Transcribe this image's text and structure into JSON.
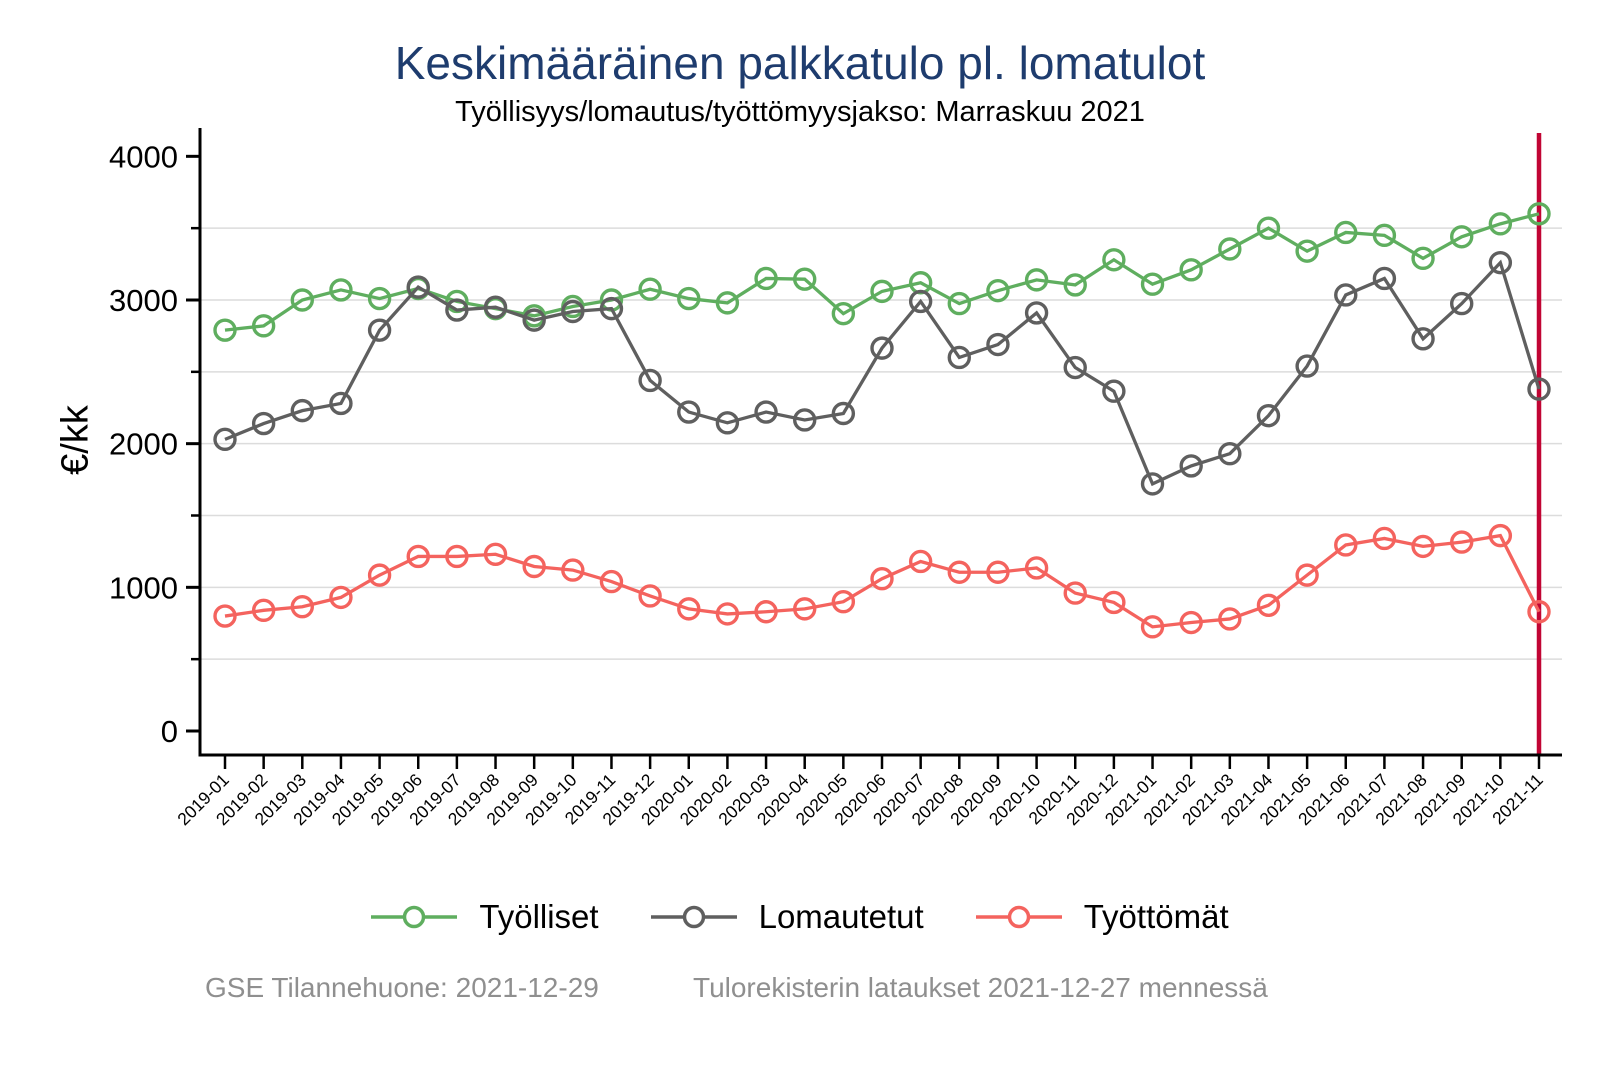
{
  "title": "Keskimääräinen palkkatulo pl. lomatulot",
  "subtitle": "Työllisyys/lomautus/työttömyysjakso: Marraskuu 2021",
  "footer": {
    "left_note": "GSE Tilannehuone: 2021-12-29",
    "right_note": "Tulorekisterin lataukset 2021-12-27 mennessä"
  },
  "colors": {
    "title": "#1e3c6e",
    "axis": "#000000",
    "grid": "#dcdcdc",
    "footer": "#8f8f8f",
    "background": "#ffffff"
  },
  "chart_data": {
    "type": "line",
    "title": "Keskimääräinen palkkatulo pl. lomatulot",
    "subtitle": "Työllisyys/lomautus/työttömyysjakso: Marraskuu 2021",
    "xlabel": "",
    "ylabel": "€/kk",
    "ylim": [
      0,
      4000
    ],
    "grid": true,
    "legend_position": "bottom",
    "ytick_labels": [
      0,
      1000,
      2000,
      3000,
      4000
    ],
    "ytick_minor": [
      500,
      1500,
      2500,
      3500
    ],
    "gridline_values": [
      500,
      1000,
      1500,
      2000,
      2500,
      3000,
      3500
    ],
    "x": [
      "2019-01",
      "2019-02",
      "2019-03",
      "2019-04",
      "2019-05",
      "2019-06",
      "2019-07",
      "2019-08",
      "2019-09",
      "2019-10",
      "2019-11",
      "2019-12",
      "2020-01",
      "2020-02",
      "2020-03",
      "2020-04",
      "2020-05",
      "2020-06",
      "2020-07",
      "2020-08",
      "2020-09",
      "2020-10",
      "2020-11",
      "2020-12",
      "2021-01",
      "2021-02",
      "2021-03",
      "2021-04",
      "2021-05",
      "2021-06",
      "2021-07",
      "2021-08",
      "2021-09",
      "2021-10",
      "2021-11"
    ],
    "series": [
      {
        "name": "Työlliset",
        "color": "#5fae5f",
        "values": [
          2790,
          2820,
          3000,
          3070,
          3010,
          3080,
          2990,
          2940,
          2890,
          2955,
          3000,
          3075,
          3010,
          2980,
          3150,
          3145,
          2905,
          3060,
          3120,
          2975,
          3065,
          3140,
          3105,
          3280,
          3110,
          3210,
          3355,
          3500,
          3340,
          3470,
          3450,
          3290,
          3440,
          3530,
          3600
        ]
      },
      {
        "name": "Lomautetut",
        "color": "#5f5f5f",
        "values": [
          2030,
          2140,
          2230,
          2280,
          2790,
          3090,
          2930,
          2950,
          2860,
          2920,
          2940,
          2440,
          2220,
          2145,
          2220,
          2165,
          2210,
          2665,
          2990,
          2600,
          2690,
          2910,
          2530,
          2365,
          1720,
          1845,
          1930,
          2195,
          2540,
          3035,
          3150,
          2730,
          2975,
          3260,
          2380
        ]
      },
      {
        "name": "Työttömät",
        "color": "#f4635e",
        "values": [
          800,
          840,
          865,
          930,
          1085,
          1215,
          1215,
          1230,
          1145,
          1120,
          1040,
          940,
          850,
          815,
          830,
          850,
          900,
          1060,
          1180,
          1105,
          1105,
          1135,
          960,
          895,
          725,
          755,
          780,
          875,
          1085,
          1295,
          1340,
          1285,
          1315,
          1360,
          830
        ]
      }
    ],
    "vline": {
      "x": "2021-11",
      "color": "#C10534"
    }
  }
}
